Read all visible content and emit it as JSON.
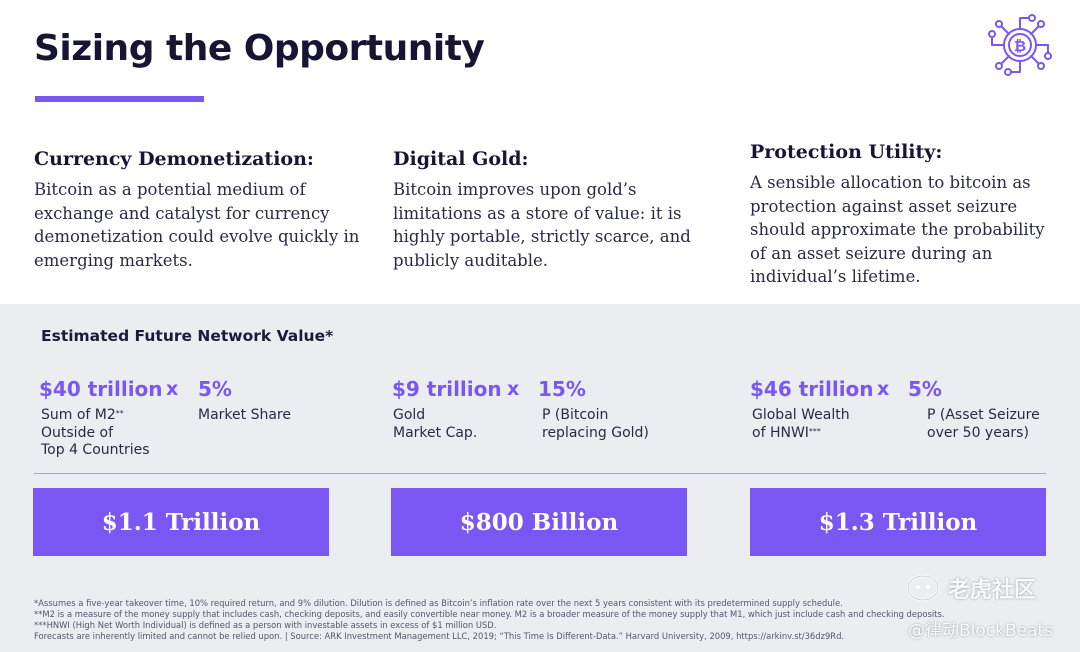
{
  "header": {
    "title": "Sizing the Opportunity",
    "logo_icon": "bitcoin-circuit-icon",
    "accent_color": "#7a57f2"
  },
  "columns": [
    {
      "heading": "Currency Demonetization:",
      "body": "Bitcoin as a potential medium of exchange and catalyst for currency demonetization could evolve quickly in emerging markets."
    },
    {
      "heading": "Digital Gold:",
      "body": "Bitcoin improves upon gold’s limitations as a store of value: it is highly portable, strictly scarce, and publicly auditable."
    },
    {
      "heading": "Protection Utility:",
      "body": "A sensible allocation to bitcoin as protection against asset seizure should approximate the probability of an asset seizure during an individual’s lifetime."
    }
  ],
  "estimate": {
    "title": "Estimated Future Network Value*",
    "times_sign": "x",
    "groups": [
      {
        "base_value": "$40 trillion",
        "base_label": "Sum of M2",
        "base_label_mark": "**",
        "base_label_rest": "Outside of\nTop 4 Countries",
        "share_value": "5%",
        "share_label": "Market Share",
        "result": "$1.1 Trillion"
      },
      {
        "base_value": "$9 trillion",
        "base_label": "Gold\nMarket Cap.",
        "share_value": "15%",
        "share_label": "P (Bitcoin\nreplacing Gold)",
        "result": "$800 Billion"
      },
      {
        "base_value": "$46 trillion",
        "base_label": "Global Wealth\nof HNWI",
        "base_label_mark": "***",
        "share_value": "5%",
        "share_label": "P (Asset Seizure\nover 50 years)",
        "result": "$1.3 Trillion"
      }
    ]
  },
  "footnotes": [
    "*Assumes a five-year takeover time, 10% required return, and 9% dilution. Dilution is defined as Bitcoin’s inflation rate over the next 5 years consistent with its predetermined supply schedule.",
    "**M2 is a measure of the money supply that includes cash, checking deposits, and easily convertible near money. M2 is a broader measure of the money supply that M1, which just include cash and checking deposits.",
    "***HNWI (High Net Worth Individual) is defined as a person with investable assets in excess of $1 million USD.",
    "Forecasts are inherently limited and cannot be relied upon.  |  Source: ARK Investment Management LLC, 2019; “This Time Is Different-Data.” Harvard University, 2009, https://arkinv.st/36dz9Rd."
  ],
  "watermark": {
    "line1": "老虎社区",
    "line2": "@律动BlockBeats",
    "icon": "tiger-community-icon"
  }
}
